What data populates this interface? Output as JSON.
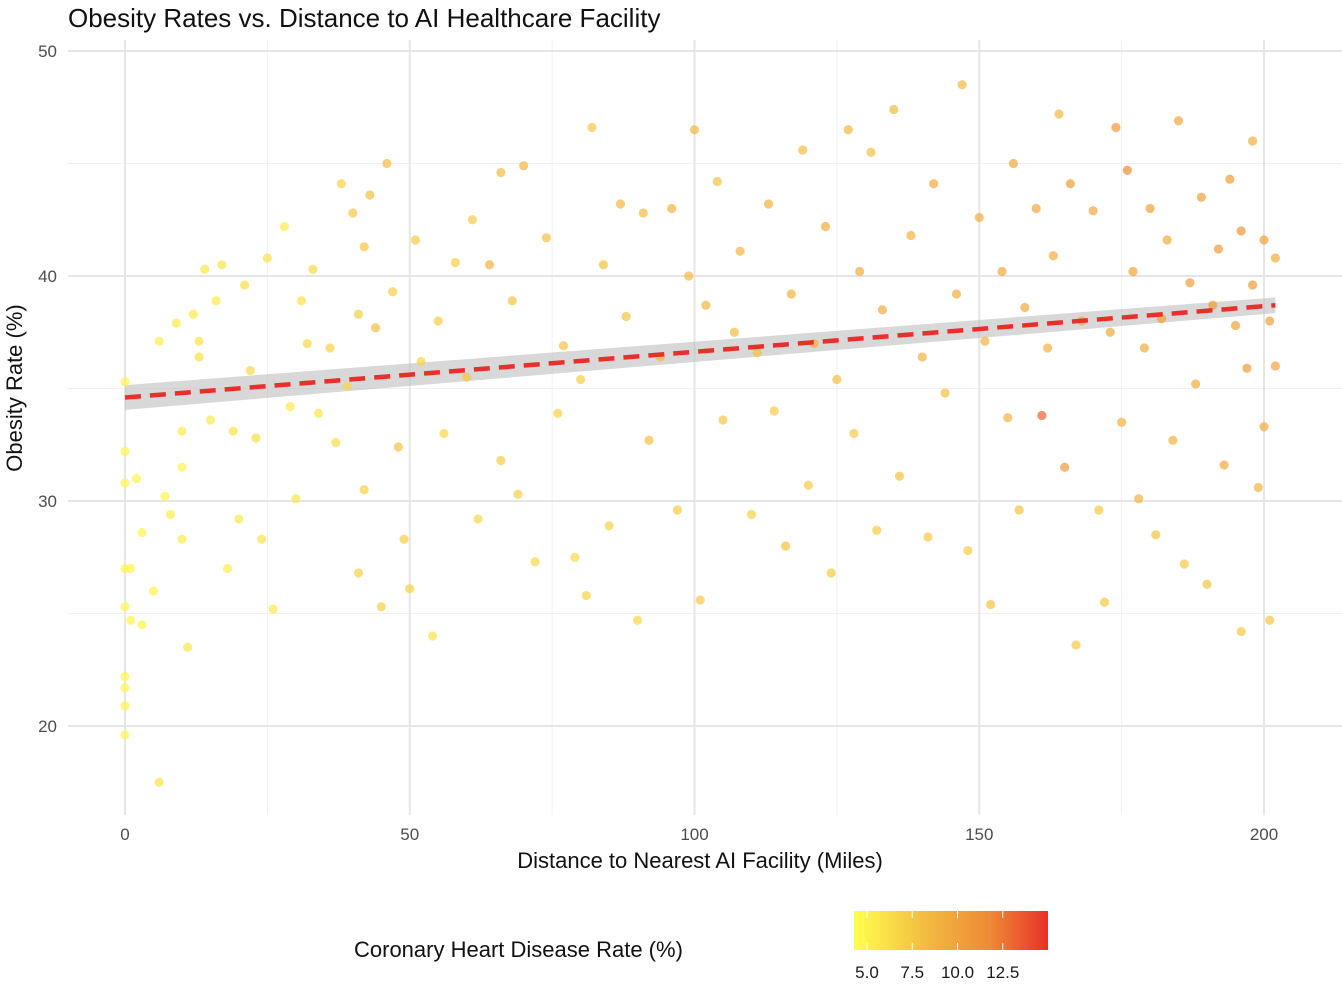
{
  "chart_data": {
    "type": "scatter",
    "title": "Obesity Rates vs. Distance to AI Healthcare Facility",
    "xlabel": "Distance to Nearest AI Facility (Miles)",
    "ylabel": "Obesity Rate (%)",
    "xlim": [
      -10,
      210
    ],
    "ylim": [
      15.8,
      50.5
    ],
    "xticks": [
      0,
      50,
      100,
      150,
      200
    ],
    "yticks": [
      20,
      30,
      40,
      50
    ],
    "grid": true,
    "legend": {
      "title": "Coronary Heart Disease Rate (%)",
      "placement": "bottom",
      "ticks": [
        "5.0",
        "7.5",
        "10.0",
        "12.5"
      ],
      "tick_values": [
        5.0,
        7.5,
        10.0,
        12.5
      ],
      "range": [
        4.3,
        15.0
      ],
      "colors": [
        "#FFFF4D",
        "#F2B640",
        "#EE8A35",
        "#E8302A"
      ]
    },
    "trend": {
      "style": "dashed",
      "color": "#E8302A",
      "x": [
        0,
        202
      ],
      "y": [
        34.6,
        38.7
      ],
      "ci_halfwidth": [
        0.55,
        0.35
      ],
      "ci_color": "#BEBEBE"
    },
    "points": [
      [
        0,
        35.3,
        5
      ],
      [
        0,
        32.2,
        5
      ],
      [
        0,
        30.8,
        5
      ],
      [
        0,
        27,
        5
      ],
      [
        0,
        25.3,
        5
      ],
      [
        0,
        22.2,
        5
      ],
      [
        0,
        21.7,
        5
      ],
      [
        0,
        20.9,
        5
      ],
      [
        0,
        19.6,
        5
      ],
      [
        1,
        24.7,
        5
      ],
      [
        1,
        27,
        5
      ],
      [
        2,
        31,
        5
      ],
      [
        3,
        28.6,
        5
      ],
      [
        3,
        24.5,
        5
      ],
      [
        5,
        26,
        5
      ],
      [
        6,
        37.1,
        5.2
      ],
      [
        6,
        17.5,
        6
      ],
      [
        7,
        30.2,
        5
      ],
      [
        8,
        29.4,
        5.3
      ],
      [
        9,
        37.9,
        5.5
      ],
      [
        10,
        33.1,
        5.4
      ],
      [
        10,
        31.5,
        5
      ],
      [
        10,
        28.3,
        5.5
      ],
      [
        11,
        23.5,
        5.8
      ],
      [
        12,
        38.3,
        5.5
      ],
      [
        13,
        37.1,
        6
      ],
      [
        13,
        36.4,
        6.1
      ],
      [
        14,
        40.3,
        5.8
      ],
      [
        15,
        33.6,
        5.7
      ],
      [
        16,
        38.9,
        5.5
      ],
      [
        17,
        40.5,
        6
      ],
      [
        18,
        27,
        5.6
      ],
      [
        19,
        33.1,
        6
      ],
      [
        20,
        29.2,
        5.7
      ],
      [
        21,
        39.6,
        6.3
      ],
      [
        22,
        35.8,
        6.7
      ],
      [
        23,
        32.8,
        6.2
      ],
      [
        24,
        28.3,
        6
      ],
      [
        25,
        40.8,
        6
      ],
      [
        26,
        25.2,
        5.5
      ],
      [
        28,
        42.2,
        5.4
      ],
      [
        29,
        34.2,
        5.6
      ],
      [
        30,
        30.1,
        5.8
      ],
      [
        31,
        38.9,
        6
      ],
      [
        32,
        37,
        6.5
      ],
      [
        33,
        40.3,
        6.6
      ],
      [
        34,
        33.9,
        5.8
      ],
      [
        36,
        36.8,
        7
      ],
      [
        37,
        32.6,
        6.4
      ],
      [
        38,
        44.1,
        6.9
      ],
      [
        39,
        35.1,
        6.6
      ],
      [
        40,
        42.8,
        7.6
      ],
      [
        41,
        38.3,
        7.2
      ],
      [
        41,
        26.8,
        7
      ],
      [
        42,
        41.3,
        7.7
      ],
      [
        42,
        30.5,
        7
      ],
      [
        43,
        43.6,
        8
      ],
      [
        44,
        37.7,
        8.2
      ],
      [
        45,
        25.3,
        7
      ],
      [
        46,
        45,
        8.2
      ],
      [
        47,
        39.3,
        7
      ],
      [
        48,
        32.4,
        8
      ],
      [
        49,
        28.3,
        7.2
      ],
      [
        50,
        26.1,
        7
      ],
      [
        51,
        41.6,
        7.5
      ],
      [
        52,
        36.2,
        6.8
      ],
      [
        54,
        24,
        6
      ],
      [
        55,
        38,
        7.3
      ],
      [
        56,
        33,
        6.5
      ],
      [
        58,
        40.6,
        7.1
      ],
      [
        60,
        35.5,
        7.6
      ],
      [
        61,
        42.5,
        7.4
      ],
      [
        62,
        29.2,
        6.6
      ],
      [
        64,
        40.5,
        8.8
      ],
      [
        66,
        44.6,
        8.3
      ],
      [
        66,
        31.8,
        7.3
      ],
      [
        68,
        38.9,
        7.8
      ],
      [
        69,
        30.3,
        7
      ],
      [
        70,
        44.9,
        8.6
      ],
      [
        72,
        27.3,
        6.6
      ],
      [
        74,
        41.7,
        8
      ],
      [
        76,
        33.9,
        7
      ],
      [
        77,
        36.9,
        8
      ],
      [
        79,
        27.5,
        6.6
      ],
      [
        80,
        35.4,
        7.4
      ],
      [
        81,
        25.8,
        6.9
      ],
      [
        82,
        46.6,
        7.6
      ],
      [
        84,
        40.5,
        8
      ],
      [
        85,
        28.9,
        6.9
      ],
      [
        87,
        43.2,
        8.7
      ],
      [
        88,
        38.2,
        8
      ],
      [
        90,
        24.7,
        6.8
      ],
      [
        91,
        42.8,
        8.4
      ],
      [
        92,
        32.7,
        8
      ],
      [
        94,
        36.4,
        8.5
      ],
      [
        96,
        43,
        8.8
      ],
      [
        97,
        29.6,
        7.3
      ],
      [
        99,
        40,
        8.5
      ],
      [
        100,
        46.5,
        8.6
      ],
      [
        101,
        25.6,
        7.5
      ],
      [
        102,
        38.7,
        8.8
      ],
      [
        104,
        44.2,
        8
      ],
      [
        105,
        33.6,
        7.6
      ],
      [
        107,
        37.5,
        8.4
      ],
      [
        108,
        41.1,
        8.7
      ],
      [
        110,
        29.4,
        7
      ],
      [
        111,
        36.6,
        8
      ],
      [
        113,
        43.2,
        8.9
      ],
      [
        114,
        34,
        7.4
      ],
      [
        116,
        28,
        8
      ],
      [
        117,
        39.2,
        8.8
      ],
      [
        119,
        45.6,
        8.2
      ],
      [
        120,
        30.7,
        7.5
      ],
      [
        121,
        37,
        9
      ],
      [
        123,
        42.2,
        9.4
      ],
      [
        124,
        26.8,
        7.5
      ],
      [
        125,
        35.4,
        8.2
      ],
      [
        127,
        46.5,
        8.5
      ],
      [
        128,
        33,
        7.5
      ],
      [
        129,
        40.2,
        9.2
      ],
      [
        131,
        45.5,
        8
      ],
      [
        132,
        28.7,
        7.3
      ],
      [
        133,
        38.5,
        9.5
      ],
      [
        135,
        47.4,
        8.4
      ],
      [
        136,
        31.1,
        8
      ],
      [
        138,
        41.8,
        9
      ],
      [
        140,
        36.4,
        9
      ],
      [
        141,
        28.4,
        7.5
      ],
      [
        142,
        44.1,
        9.6
      ],
      [
        144,
        34.8,
        8
      ],
      [
        146,
        39.2,
        9.3
      ],
      [
        147,
        48.5,
        8.6
      ],
      [
        148,
        27.8,
        7.3
      ],
      [
        150,
        42.6,
        9.2
      ],
      [
        151,
        37.1,
        9
      ],
      [
        152,
        25.4,
        8
      ],
      [
        154,
        40.2,
        9.8
      ],
      [
        155,
        33.7,
        8.8
      ],
      [
        156,
        45,
        9.5
      ],
      [
        157,
        29.6,
        8
      ],
      [
        158,
        38.6,
        9.6
      ],
      [
        160,
        43,
        9.6
      ],
      [
        161,
        33.8,
        13.2
      ],
      [
        162,
        36.8,
        9
      ],
      [
        163,
        40.9,
        9.3
      ],
      [
        164,
        47.2,
        8.4
      ],
      [
        165,
        31.5,
        10.5
      ],
      [
        166,
        44.1,
        10.5
      ],
      [
        167,
        23.6,
        7.5
      ],
      [
        168,
        38,
        9.2
      ],
      [
        170,
        42.9,
        9.6
      ],
      [
        171,
        29.6,
        7.6
      ],
      [
        172,
        25.5,
        7.5
      ],
      [
        173,
        37.5,
        9.5
      ],
      [
        174,
        46.6,
        10.8
      ],
      [
        175,
        33.5,
        9
      ],
      [
        176,
        44.7,
        11.7
      ],
      [
        177,
        40.2,
        10
      ],
      [
        178,
        30.1,
        9
      ],
      [
        179,
        36.8,
        9.2
      ],
      [
        180,
        43,
        10.2
      ],
      [
        181,
        28.5,
        8
      ],
      [
        182,
        38.1,
        10
      ],
      [
        183,
        41.6,
        9.4
      ],
      [
        184,
        32.7,
        9
      ],
      [
        185,
        46.9,
        9.8
      ],
      [
        186,
        27.2,
        7.5
      ],
      [
        187,
        39.7,
        10.2
      ],
      [
        188,
        35.2,
        9.4
      ],
      [
        189,
        43.5,
        10.3
      ],
      [
        190,
        26.3,
        7.8
      ],
      [
        191,
        38.7,
        10.4
      ],
      [
        192,
        41.2,
        10.6
      ],
      [
        193,
        31.6,
        9.4
      ],
      [
        194,
        44.3,
        10.5
      ],
      [
        195,
        37.8,
        10
      ],
      [
        196,
        24.2,
        7.5
      ],
      [
        196,
        42,
        11
      ],
      [
        197,
        35.9,
        10.4
      ],
      [
        198,
        39.6,
        10.6
      ],
      [
        198,
        46,
        9.2
      ],
      [
        199,
        30.6,
        8.8
      ],
      [
        200,
        41.6,
        10.2
      ],
      [
        200,
        33.3,
        9.6
      ],
      [
        201,
        38,
        10.2
      ],
      [
        201,
        24.7,
        7.6
      ],
      [
        202,
        40.8,
        9.4
      ],
      [
        202,
        36,
        10
      ]
    ]
  }
}
